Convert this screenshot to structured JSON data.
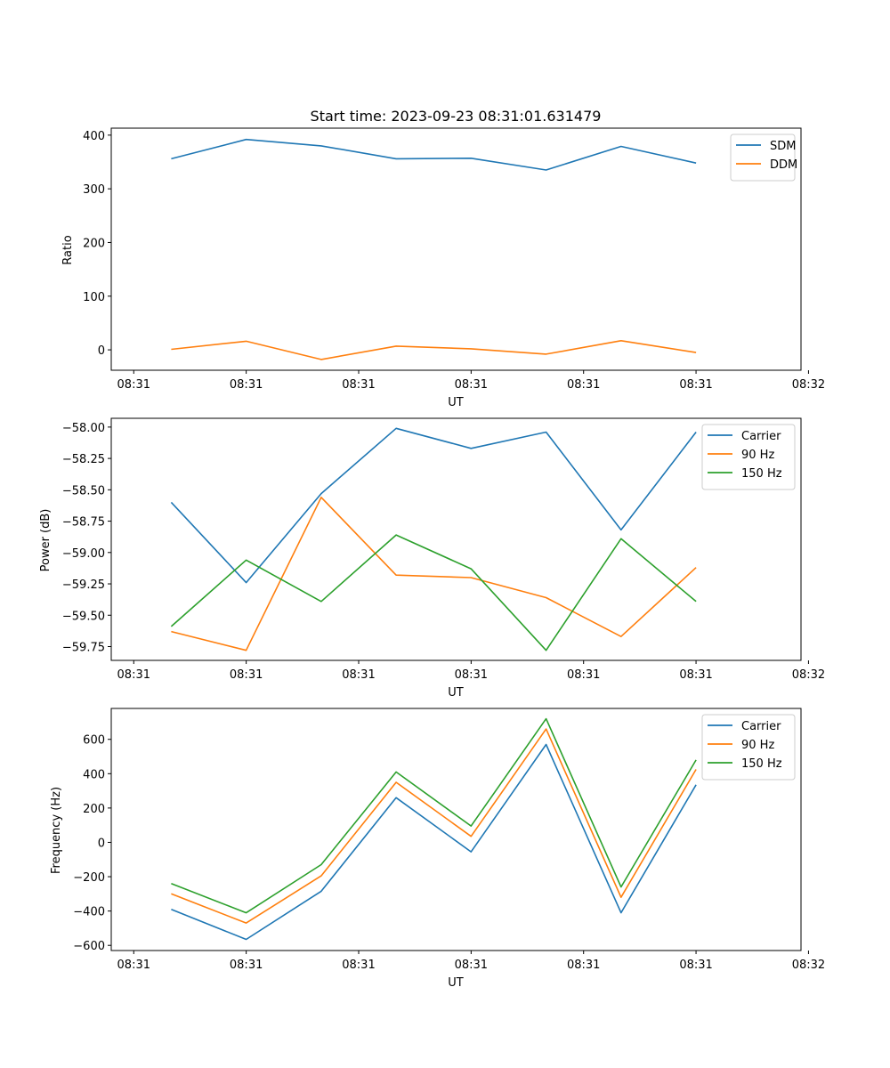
{
  "chart_data": [
    {
      "type": "line",
      "title": "Start time: 2023-09-23 08:31:01.631479",
      "xlabel": "UT",
      "ylabel": "Ratio",
      "xlim": [
        -0.3,
        8.9
      ],
      "ylim": [
        -38,
        413
      ],
      "x": [
        0.5,
        1.5,
        2.5,
        3.5,
        4.5,
        5.5,
        6.5,
        7.5
      ],
      "xticks": [
        {
          "value": 0,
          "label": "08:31"
        },
        {
          "value": 1.5,
          "label": "08:31"
        },
        {
          "value": 3,
          "label": "08:31"
        },
        {
          "value": 4.5,
          "label": "08:31"
        },
        {
          "value": 6,
          "label": "08:31"
        },
        {
          "value": 7.5,
          "label": "08:31"
        },
        {
          "value": 9,
          "label": "08:32"
        }
      ],
      "yticks": [
        {
          "value": 400,
          "label": "400"
        },
        {
          "value": 300,
          "label": "300"
        },
        {
          "value": 200,
          "label": "200"
        },
        {
          "value": 100,
          "label": "100"
        },
        {
          "value": 0,
          "label": "0"
        }
      ],
      "legend_position": "top-right",
      "series": [
        {
          "name": "SDM",
          "color": "#1f77b4",
          "values": [
            356,
            392,
            380,
            356,
            357,
            335,
            379,
            348
          ]
        },
        {
          "name": "DDM",
          "color": "#ff7f0e",
          "values": [
            1,
            16,
            -18,
            7,
            2,
            -8,
            17,
            -5
          ]
        }
      ]
    },
    {
      "type": "line",
      "title": "",
      "xlabel": "UT",
      "ylabel": "Power (dB)",
      "xlim": [
        -0.3,
        8.9
      ],
      "ylim": [
        -59.86,
        -57.93
      ],
      "x": [
        0.5,
        1.5,
        2.5,
        3.5,
        4.5,
        5.5,
        6.5,
        7.5
      ],
      "xticks": [
        {
          "value": 0,
          "label": "08:31"
        },
        {
          "value": 1.5,
          "label": "08:31"
        },
        {
          "value": 3,
          "label": "08:31"
        },
        {
          "value": 4.5,
          "label": "08:31"
        },
        {
          "value": 6,
          "label": "08:31"
        },
        {
          "value": 7.5,
          "label": "08:31"
        },
        {
          "value": 9,
          "label": "08:32"
        }
      ],
      "yticks": [
        {
          "value": -58.0,
          "label": "−58.00"
        },
        {
          "value": -58.25,
          "label": "−58.25"
        },
        {
          "value": -58.5,
          "label": "−58.50"
        },
        {
          "value": -58.75,
          "label": "−58.75"
        },
        {
          "value": -59.0,
          "label": "−59.00"
        },
        {
          "value": -59.25,
          "label": "−59.25"
        },
        {
          "value": -59.5,
          "label": "−59.50"
        },
        {
          "value": -59.75,
          "label": "−59.75"
        }
      ],
      "legend_position": "top-right",
      "series": [
        {
          "name": "Carrier",
          "color": "#1f77b4",
          "values": [
            -58.6,
            -59.24,
            -58.53,
            -58.01,
            -58.17,
            -58.04,
            -58.82,
            -58.04
          ]
        },
        {
          "name": "90 Hz",
          "color": "#ff7f0e",
          "values": [
            -59.63,
            -59.78,
            -58.56,
            -59.18,
            -59.2,
            -59.36,
            -59.67,
            -59.12
          ]
        },
        {
          "name": "150 Hz",
          "color": "#2ca02c",
          "values": [
            -59.59,
            -59.06,
            -59.39,
            -58.86,
            -59.13,
            -59.78,
            -58.89,
            -59.39
          ]
        }
      ]
    },
    {
      "type": "line",
      "title": "",
      "xlabel": "UT",
      "ylabel": "Frequency (Hz)",
      "xlim": [
        -0.3,
        8.9
      ],
      "ylim": [
        -630,
        780
      ],
      "x": [
        0.5,
        1.5,
        2.5,
        3.5,
        4.5,
        5.5,
        6.5,
        7.5
      ],
      "xticks": [
        {
          "value": 0,
          "label": "08:31"
        },
        {
          "value": 1.5,
          "label": "08:31"
        },
        {
          "value": 3,
          "label": "08:31"
        },
        {
          "value": 4.5,
          "label": "08:31"
        },
        {
          "value": 6,
          "label": "08:31"
        },
        {
          "value": 7.5,
          "label": "08:31"
        },
        {
          "value": 9,
          "label": "08:32"
        }
      ],
      "yticks": [
        {
          "value": 600,
          "label": "600"
        },
        {
          "value": 400,
          "label": "400"
        },
        {
          "value": 200,
          "label": "200"
        },
        {
          "value": 0,
          "label": "0"
        },
        {
          "value": -200,
          "label": "−200"
        },
        {
          "value": -400,
          "label": "−400"
        },
        {
          "value": -600,
          "label": "−600"
        }
      ],
      "legend_position": "top-right",
      "series": [
        {
          "name": "Carrier",
          "color": "#1f77b4",
          "values": [
            -390,
            -565,
            -285,
            260,
            -55,
            570,
            -410,
            335
          ]
        },
        {
          "name": "90 Hz",
          "color": "#ff7f0e",
          "values": [
            -300,
            -470,
            -195,
            350,
            35,
            660,
            -320,
            425
          ]
        },
        {
          "name": "150 Hz",
          "color": "#2ca02c",
          "values": [
            -240,
            -410,
            -130,
            410,
            95,
            720,
            -260,
            480
          ]
        }
      ]
    }
  ]
}
